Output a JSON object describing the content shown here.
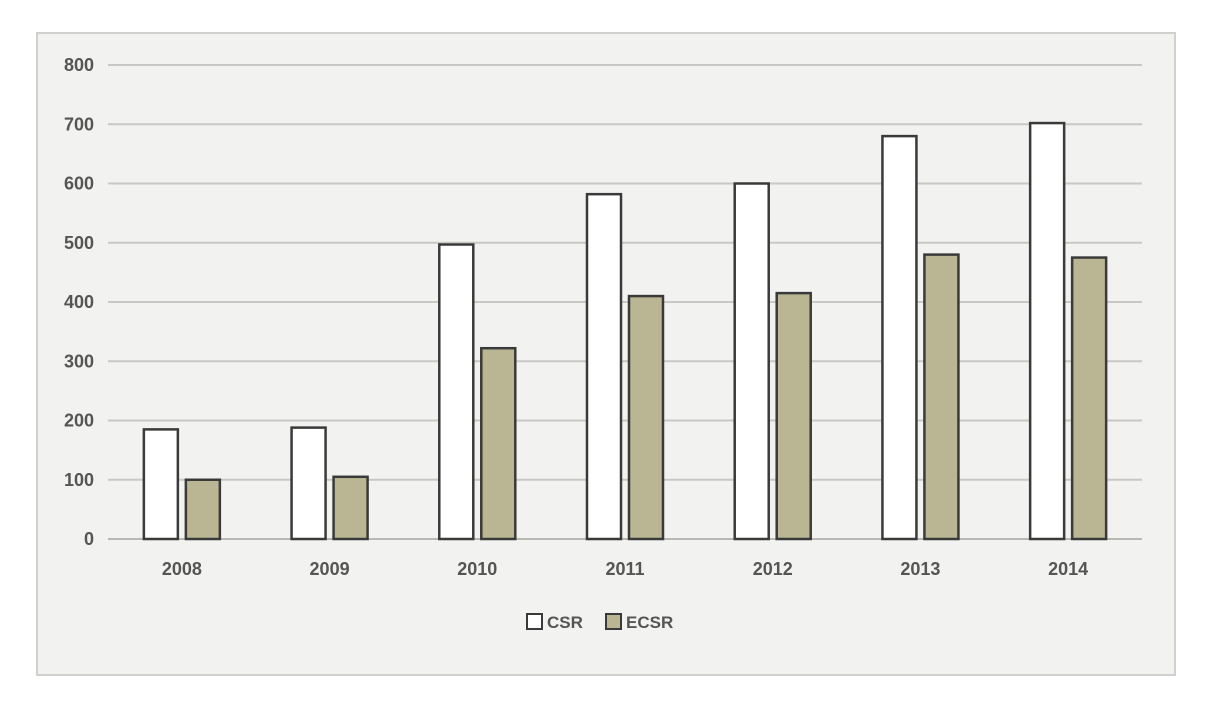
{
  "chart_data": {
    "type": "bar",
    "categories": [
      "2008",
      "2009",
      "2010",
      "2011",
      "2012",
      "2013",
      "2014"
    ],
    "series": [
      {
        "name": "CSR",
        "values": [
          185,
          188,
          497,
          582,
          600,
          680,
          702
        ],
        "color": "#ffffff"
      },
      {
        "name": "ECSR",
        "values": [
          100,
          105,
          322,
          410,
          415,
          480,
          475
        ],
        "color": "#bab693"
      }
    ],
    "title": "",
    "xlabel": "",
    "ylabel": "",
    "ylim": [
      0,
      800
    ],
    "yticks": [
      "0",
      "100",
      "200",
      "300",
      "400",
      "500",
      "600",
      "700",
      "800"
    ],
    "grid": true,
    "legend": "bottom-center",
    "colors": {
      "background": "#f2f2f0",
      "gridline": "#c8c8c4",
      "bar_outline": "#3a3a3a",
      "text": "#555555"
    }
  }
}
